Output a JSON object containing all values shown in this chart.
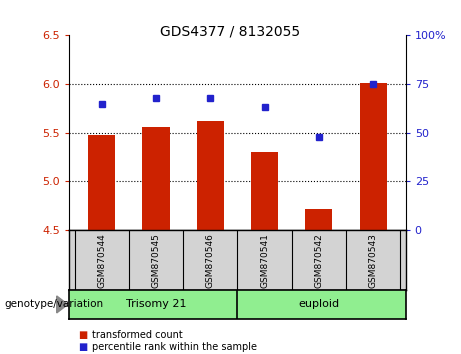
{
  "title": "GDS4377 / 8132055",
  "samples": [
    "GSM870544",
    "GSM870545",
    "GSM870546",
    "GSM870541",
    "GSM870542",
    "GSM870543"
  ],
  "bar_values": [
    5.48,
    5.56,
    5.62,
    5.3,
    4.72,
    6.01
  ],
  "percentile_values": [
    65,
    68,
    68,
    63,
    48,
    75
  ],
  "ylim_left": [
    4.5,
    6.5
  ],
  "ylim_right": [
    0,
    100
  ],
  "yticks_left": [
    4.5,
    5.0,
    5.5,
    6.0,
    6.5
  ],
  "yticks_right": [
    0,
    25,
    50,
    75,
    100
  ],
  "ytick_labels_right": [
    "0",
    "25",
    "50",
    "75",
    "100%"
  ],
  "bar_color": "#cc2200",
  "dot_color": "#2222cc",
  "bar_width": 0.5,
  "trisomy_label": "Trisomy 21",
  "euploid_label": "euploid",
  "genotype_label": "genotype/variation",
  "legend_bar_label": "transformed count",
  "legend_dot_label": "percentile rank within the sample",
  "tick_label_color_left": "#cc2200",
  "tick_label_color_right": "#2222cc",
  "gray_bg": "#d3d3d3",
  "green_bg": "#90ee90",
  "plot_bg": "#ffffff",
  "grid_color": "black",
  "grid_yticks": [
    5.0,
    5.5,
    6.0
  ],
  "fig_width": 4.61,
  "fig_height": 3.54,
  "dpi": 100
}
